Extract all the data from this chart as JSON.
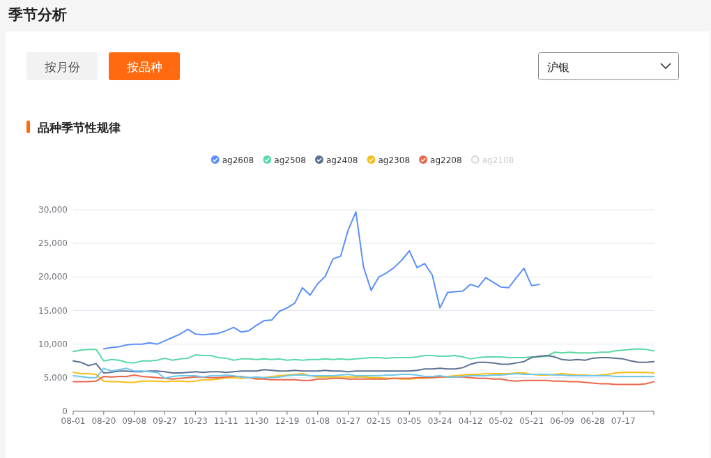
{
  "chart_data": {
    "type": "line",
    "title": "品种季节性规律",
    "annotations": [
      "季节分析",
      "按月份",
      "按品种",
      "沪银"
    ],
    "categories": [
      "08-01",
      null,
      null,
      null,
      "08-20",
      null,
      null,
      null,
      "09-08",
      null,
      null,
      null,
      "09-27",
      null,
      null,
      null,
      "10-23",
      null,
      null,
      null,
      "11-11",
      null,
      null,
      null,
      "11-30",
      null,
      null,
      null,
      "12-19",
      null,
      null,
      null,
      "01-08",
      null,
      null,
      null,
      "01-27",
      null,
      null,
      null,
      "02-15",
      null,
      null,
      null,
      "03-05",
      null,
      null,
      null,
      "03-24",
      null,
      null,
      null,
      "04-12",
      null,
      null,
      null,
      "05-02",
      null,
      null,
      null,
      "05-21",
      null,
      null,
      null,
      "06-09",
      null,
      null,
      null,
      "06-28",
      null,
      null,
      null,
      "07-17",
      null,
      null,
      null,
      null
    ],
    "series": [
      {
        "name": "ag2608",
        "color": "#5b8ff9",
        "values": [
          null,
          null,
          null,
          null,
          9300,
          9500,
          9600,
          9900,
          10000,
          10000,
          10200,
          10000,
          10500,
          11000,
          11500,
          12200,
          11500,
          11400,
          11500,
          11600,
          12000,
          12500,
          11800,
          12000,
          12800,
          13500,
          13600,
          14900,
          15400,
          16100,
          18400,
          17300,
          19000,
          20100,
          22700,
          23100,
          27000,
          29700,
          21500,
          18000,
          20000,
          20600,
          21400,
          22500,
          23900,
          21400,
          22000,
          20300,
          15400,
          17700,
          17800,
          17900,
          18900,
          18500,
          19900,
          19200,
          18500,
          18400,
          19900,
          21300,
          18700,
          18900,
          null,
          null,
          null,
          null,
          null,
          null,
          null,
          null,
          null,
          null,
          null,
          null,
          null,
          null,
          null
        ]
      },
      {
        "name": "ag2508",
        "color": "#5ad8a6",
        "values": [
          8900,
          9100,
          9200,
          9200,
          7500,
          7700,
          7600,
          7300,
          7200,
          7500,
          7500,
          7600,
          7900,
          7600,
          7800,
          7900,
          8400,
          8300,
          8300,
          8000,
          7900,
          7600,
          7800,
          7800,
          7700,
          7800,
          7700,
          7800,
          7600,
          7700,
          7600,
          7700,
          7700,
          7800,
          7700,
          7800,
          7700,
          7800,
          7900,
          8000,
          8000,
          7900,
          8000,
          8000,
          8000,
          8100,
          8300,
          8300,
          8200,
          8200,
          8300,
          8100,
          7800,
          8000,
          8100,
          8100,
          8100,
          8000,
          8000,
          8000,
          8100,
          8100,
          8200,
          8800,
          8700,
          8800,
          8700,
          8700,
          8700,
          8800,
          8800,
          9000,
          9100,
          9200,
          9300,
          9200,
          9000
        ]
      },
      {
        "name": "ag2408",
        "color": "#5d7092",
        "values": [
          7500,
          7300,
          6800,
          7100,
          5700,
          5800,
          6000,
          6000,
          5900,
          5900,
          6000,
          6000,
          5900,
          5700,
          5700,
          5800,
          5900,
          5800,
          5900,
          5900,
          5800,
          5900,
          6000,
          6000,
          6000,
          6200,
          6100,
          6000,
          6000,
          6100,
          6000,
          6000,
          6000,
          6100,
          6000,
          6000,
          5900,
          6000,
          6000,
          6000,
          6000,
          6000,
          6000,
          6000,
          6000,
          6100,
          6300,
          6300,
          6400,
          6300,
          6300,
          6500,
          7000,
          7300,
          7300,
          7200,
          7000,
          7000,
          7200,
          7400,
          8000,
          8200,
          8300,
          8100,
          7700,
          7600,
          7700,
          7600,
          7900,
          8000,
          8000,
          7900,
          7800,
          7500,
          7300,
          7300,
          7400
        ]
      },
      {
        "name": "ag2308",
        "color": "#f6bd16",
        "values": [
          5800,
          5600,
          5600,
          5500,
          4500,
          4400,
          4400,
          4300,
          4300,
          4500,
          4500,
          4500,
          4400,
          4500,
          4500,
          4400,
          4500,
          4700,
          4700,
          4800,
          5000,
          5000,
          4900,
          5000,
          4900,
          5000,
          5200,
          5300,
          5400,
          5500,
          5600,
          5300,
          5100,
          5100,
          5100,
          5100,
          5100,
          5100,
          5100,
          5000,
          5000,
          4900,
          4900,
          4800,
          4800,
          4900,
          4900,
          5000,
          5100,
          5200,
          5300,
          5400,
          5500,
          5500,
          5600,
          5600,
          5600,
          5600,
          5700,
          5700,
          5500,
          5400,
          5400,
          5500,
          5600,
          5500,
          5400,
          5400,
          5300,
          5400,
          5500,
          5700,
          5800,
          5800,
          5800,
          5800,
          5700
        ]
      },
      {
        "name": "ag2208",
        "color": "#e8684a",
        "values": [
          4400,
          4400,
          4400,
          4500,
          5200,
          5100,
          5200,
          5200,
          5400,
          5200,
          5100,
          5000,
          4900,
          4800,
          4900,
          5000,
          5100,
          5100,
          5000,
          5000,
          5100,
          5200,
          5200,
          5000,
          4800,
          4800,
          4700,
          4700,
          4700,
          4700,
          4600,
          4600,
          4800,
          4800,
          4900,
          4900,
          4800,
          4800,
          4800,
          4800,
          4800,
          4800,
          4900,
          4900,
          4900,
          5000,
          5000,
          5000,
          5100,
          5100,
          5100,
          5100,
          5000,
          4900,
          4900,
          4800,
          4800,
          4600,
          4500,
          4600,
          4600,
          4600,
          4600,
          4500,
          4500,
          4400,
          4400,
          4300,
          4200,
          4100,
          4100,
          4000,
          4000,
          4000,
          4000,
          4100,
          4400
        ]
      },
      {
        "name": "ag2108",
        "color": "#cccccc",
        "values": [
          null,
          null,
          null,
          null,
          null,
          null,
          null,
          null,
          null,
          null,
          null,
          null,
          null,
          null,
          null,
          null,
          null,
          null,
          null,
          null,
          null,
          null,
          null,
          null,
          null,
          null,
          null,
          null,
          null,
          null,
          null,
          null,
          null,
          null,
          null,
          null,
          null,
          null,
          null,
          null,
          null,
          null,
          null,
          null,
          null,
          null,
          null,
          null,
          null,
          null,
          null,
          null,
          null,
          null,
          null,
          null,
          null,
          null,
          null,
          null,
          null,
          null,
          null,
          null,
          null,
          null,
          null,
          null,
          null,
          null,
          null,
          null,
          null,
          null,
          null,
          null,
          null
        ]
      },
      {
        "color": "#6dc8ec",
        "values": [
          5300,
          5200,
          5000,
          5000,
          6400,
          6000,
          6200,
          6400,
          6000,
          6000,
          5900,
          5800,
          4900,
          5200,
          5300,
          5300,
          5300,
          5100,
          5300,
          5300,
          5400,
          5300,
          5100,
          5000,
          5100,
          5000,
          5000,
          5100,
          5300,
          5400,
          5400,
          5300,
          5300,
          5300,
          5300,
          5400,
          5500,
          5300,
          5300,
          5300,
          5300,
          5400,
          5400,
          5500,
          5500,
          5400,
          5200,
          5200,
          5300,
          5100,
          5100,
          5200,
          5300,
          5300,
          5300,
          5400,
          5400,
          5500,
          5600,
          5500,
          5500,
          5500,
          5500,
          5400,
          5400,
          5300,
          5300,
          5300,
          5300,
          5300,
          5300,
          5200,
          5200,
          5200,
          5200,
          5200,
          5200
        ]
      }
    ],
    "ylim": [
      0,
      30000
    ],
    "yticks": [
      0,
      {
        "value": 5000,
        "label": "5,000"
      },
      {
        "value": 10000,
        "label": "10,000"
      },
      {
        "value": 15000,
        "label": "15,000"
      },
      {
        "value": 20000,
        "label": "20,000"
      },
      {
        "value": 25000,
        "label": "25,000"
      },
      {
        "value": 30000,
        "label": "30,000"
      }
    ],
    "grid": "y",
    "legend": "top"
  }
}
